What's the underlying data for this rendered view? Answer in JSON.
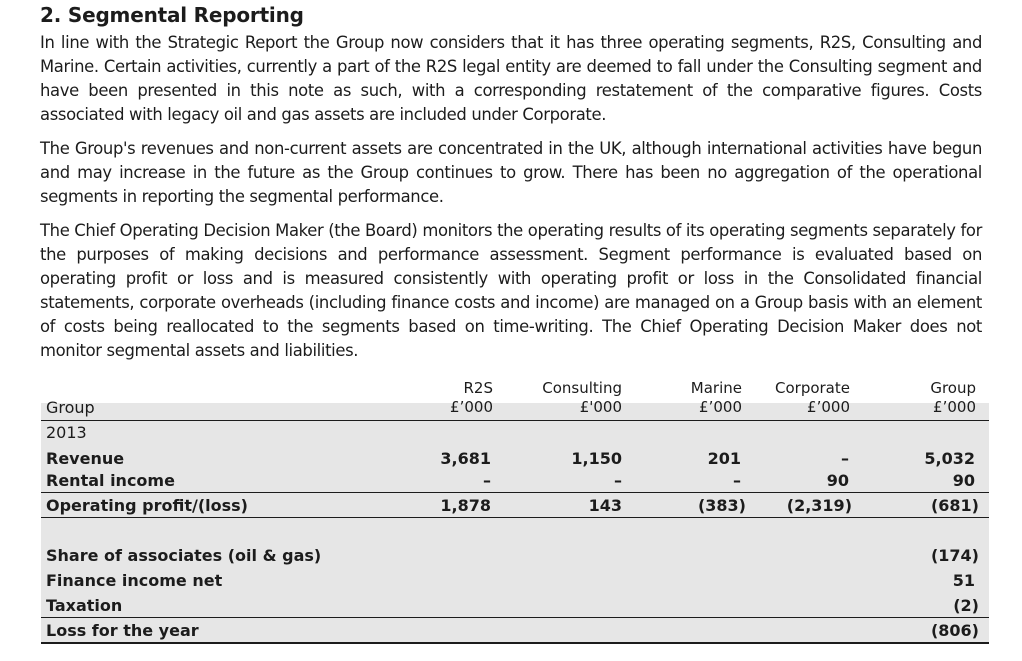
{
  "heading": "2.  Segmental Reporting",
  "paragraphs": {
    "p1": "In line with the Strategic Report the Group now considers that it has three operating segments, R2S, Consulting and Marine. Certain activities, currently a part of the R2S legal entity are deemed to fall under the Consulting segment and have been presented in this note as such, with a corresponding restatement of the comparative figures. Costs associated with legacy oil and gas assets are included under Corporate.",
    "p2": "The Group's revenues and non-current assets are concentrated in the UK, although international activities have begun and may increase in the future as the Group continues to grow. There has been no aggregation of the operational segments in reporting the segmental performance.",
    "p3": "The Chief Operating Decision Maker (the Board) monitors the operating results of its operating segments separately for the purposes of making decisions and performance assessment. Segment performance is evaluated based on operating profit or loss and is measured consistently with operating profit or loss in the Consolidated financial statements, corporate overheads (including finance costs and income) are managed on a Group basis with an element of costs being reallocated to the segments based on time-writing. The Chief Operating Decision Maker does not monitor segmental assets and liabilities."
  },
  "table": {
    "row_header": "Group",
    "year": "2013",
    "columns": [
      {
        "name": "R2S",
        "unit": "£’000"
      },
      {
        "name": "Consulting",
        "unit": "£'000"
      },
      {
        "name": "Marine",
        "unit": "£’000"
      },
      {
        "name": "Corporate",
        "unit": "£’000"
      },
      {
        "name": "Group",
        "unit": "£’000"
      }
    ],
    "rows": [
      {
        "label": "Revenue",
        "values": [
          "3,681",
          "1,150",
          "201",
          "–",
          "5,032"
        ]
      },
      {
        "label": "Rental income",
        "values": [
          "–",
          "–",
          "–",
          "90",
          "90"
        ]
      },
      {
        "label": "Operating profit/(loss)",
        "values": [
          "1,878",
          "143",
          "(383)",
          "(2,319)",
          "(681)"
        ]
      }
    ],
    "summary_rows": [
      {
        "label": "Share of associates (oil & gas)",
        "value": "(174)"
      },
      {
        "label": "Finance income net",
        "value": "51"
      },
      {
        "label": "Taxation",
        "value": "(2)"
      },
      {
        "label": "Loss for the year",
        "value": "(806)"
      }
    ]
  }
}
